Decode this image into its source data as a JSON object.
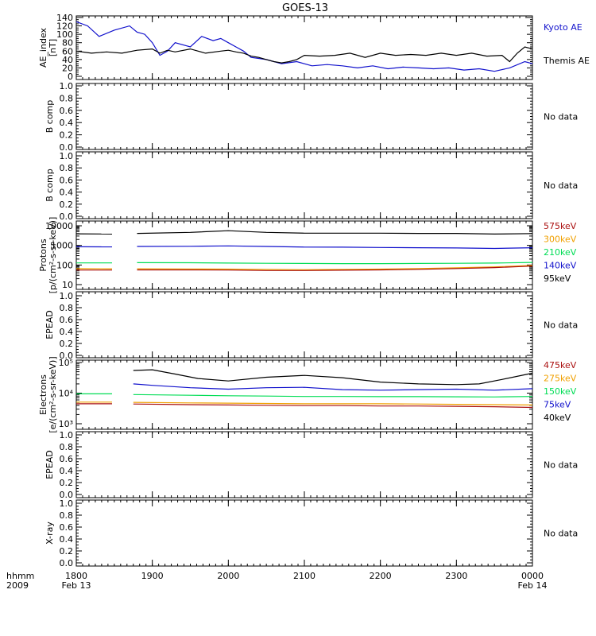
{
  "title": "GOES-13",
  "time_axis": {
    "ticks": [
      "1800",
      "1900",
      "2000",
      "2100",
      "2200",
      "2300",
      "0000"
    ],
    "corner_label": "hhmm",
    "corner_year": "2009",
    "start_date": "Feb 13",
    "end_date": "Feb 14"
  },
  "no_data_text": "No data",
  "colors": {
    "black": "#000000",
    "blue": "#1010cc",
    "green": "#00dd55",
    "orange": "#f0a000",
    "red": "#aa1010",
    "dark_blue": "#0000cc"
  },
  "chart_data": [
    {
      "type": "line",
      "ylabel": "AE_index [nT]",
      "ylim": [
        0,
        140
      ],
      "yticks": [
        0,
        20,
        40,
        60,
        80,
        100,
        120,
        140
      ],
      "xlim_hours": [
        18,
        24
      ],
      "legend": [
        "Kyoto AE",
        "Themis AE"
      ],
      "series": [
        {
          "name": "Kyoto AE",
          "color": "#1010cc",
          "x": [
            18.0,
            18.15,
            18.3,
            18.5,
            18.7,
            18.8,
            18.9,
            19.0,
            19.1,
            19.2,
            19.3,
            19.5,
            19.65,
            19.8,
            19.9,
            20.0,
            20.1,
            20.2,
            20.3,
            20.5,
            20.7,
            20.9,
            21.1,
            21.3,
            21.5,
            21.7,
            21.9,
            22.1,
            22.3,
            22.5,
            22.7,
            22.9,
            23.1,
            23.3,
            23.5,
            23.7,
            23.9,
            24.0
          ],
          "y": [
            130,
            120,
            95,
            110,
            120,
            105,
            100,
            80,
            50,
            60,
            80,
            70,
            95,
            85,
            90,
            80,
            70,
            60,
            45,
            40,
            30,
            35,
            25,
            28,
            25,
            20,
            25,
            18,
            22,
            20,
            18,
            20,
            15,
            18,
            12,
            20,
            35,
            30
          ]
        },
        {
          "name": "Themis AE",
          "color": "#000000",
          "x": [
            18.0,
            18.2,
            18.4,
            18.6,
            18.8,
            19.0,
            19.1,
            19.2,
            19.3,
            19.5,
            19.7,
            19.9,
            20.0,
            20.1,
            20.2,
            20.3,
            20.4,
            20.5,
            20.6,
            20.7,
            20.8,
            20.9,
            21.0,
            21.2,
            21.4,
            21.6,
            21.8,
            22.0,
            22.2,
            22.4,
            22.6,
            22.8,
            23.0,
            23.2,
            23.4,
            23.6,
            23.7,
            23.8,
            23.9,
            24.0
          ],
          "y": [
            60,
            55,
            58,
            55,
            62,
            65,
            55,
            62,
            58,
            65,
            55,
            60,
            62,
            58,
            55,
            48,
            45,
            40,
            35,
            32,
            35,
            40,
            50,
            48,
            50,
            55,
            45,
            55,
            50,
            52,
            50,
            55,
            50,
            55,
            48,
            50,
            35,
            55,
            70,
            65
          ]
        }
      ]
    },
    {
      "type": "line",
      "ylabel": "B comp",
      "ylim": [
        0.0,
        1.0
      ],
      "yticks": [
        "0.0",
        "0.2",
        "0.4",
        "0.6",
        "0.8",
        "1.0"
      ],
      "status": "No data",
      "series": []
    },
    {
      "type": "line",
      "ylabel": "B comp",
      "ylim": [
        0.0,
        1.0
      ],
      "yticks": [
        "0.0",
        "0.2",
        "0.4",
        "0.6",
        "0.8",
        "1.0"
      ],
      "status": "No data",
      "series": []
    },
    {
      "type": "line",
      "ylabel": "Protons [p/(cm²-s-sr-keV)]",
      "yscale": "log",
      "ylim": [
        10,
        10000
      ],
      "yticks": [
        "10",
        "100",
        "1000",
        "10000"
      ],
      "data_gap_hours": [
        18.47,
        18.8
      ],
      "legend": [
        "575keV",
        "300keV",
        "210keV",
        "140keV",
        "95keV"
      ],
      "series": [
        {
          "name": "95keV",
          "color": "#000000",
          "x": [
            18.0,
            18.47,
            18.8,
            19.5,
            20.0,
            20.5,
            21.0,
            21.5,
            22.0,
            22.5,
            23.0,
            23.5,
            24.0
          ],
          "y": [
            3900,
            3800,
            4100,
            4600,
            5600,
            4600,
            4200,
            4200,
            4200,
            4100,
            4100,
            3800,
            4000
          ]
        },
        {
          "name": "140keV",
          "color": "#1010cc",
          "x": [
            18.0,
            18.47,
            18.8,
            19.5,
            20.0,
            20.5,
            21.0,
            21.5,
            22.0,
            22.5,
            23.0,
            23.5,
            24.0
          ],
          "y": [
            850,
            840,
            880,
            900,
            940,
            880,
            820,
            810,
            780,
            760,
            740,
            700,
            760
          ]
        },
        {
          "name": "210keV",
          "color": "#00dd55",
          "x": [
            18.0,
            18.47,
            18.8,
            19.5,
            20.0,
            20.5,
            21.0,
            21.5,
            22.0,
            22.5,
            23.0,
            23.5,
            24.0
          ],
          "y": [
            128,
            128,
            132,
            130,
            125,
            122,
            120,
            118,
            118,
            120,
            122,
            125,
            135
          ]
        },
        {
          "name": "300keV",
          "color": "#f0a000",
          "x": [
            18.0,
            18.47,
            18.8,
            19.5,
            20.0,
            20.5,
            21.0,
            21.5,
            22.0,
            22.5,
            23.0,
            23.5,
            24.0
          ],
          "y": [
            65,
            64,
            64,
            63,
            62,
            60,
            58,
            60,
            62,
            66,
            72,
            80,
            95
          ]
        },
        {
          "name": "575keV",
          "color": "#aa1010",
          "x": [
            18.0,
            18.47,
            18.8,
            19.5,
            20.0,
            20.5,
            21.0,
            21.5,
            22.0,
            22.5,
            23.0,
            23.5,
            24.0
          ],
          "y": [
            55,
            55,
            56,
            56,
            55,
            52,
            52,
            54,
            56,
            60,
            66,
            74,
            88
          ]
        }
      ]
    },
    {
      "type": "line",
      "ylabel": "EPEAD",
      "ylim": [
        0.0,
        1.0
      ],
      "yticks": [
        "0.0",
        "0.2",
        "0.4",
        "0.6",
        "0.8",
        "1.0"
      ],
      "status": "No data",
      "series": []
    },
    {
      "type": "line",
      "ylabel": "Electrons [e/(cm²-s-sr-keV)]",
      "yscale": "log",
      "ylim": [
        1000,
        100000
      ],
      "yticks": [
        "10³",
        "10⁴",
        "10⁵"
      ],
      "data_gap_hours": [
        18.47,
        18.75
      ],
      "legend": [
        "475keV",
        "275keV",
        "150keV",
        "75keV",
        "40keV"
      ],
      "series": [
        {
          "name": "40keV",
          "color": "#000000",
          "x": [
            18.75,
            19.0,
            19.3,
            19.6,
            20.0,
            20.5,
            21.0,
            21.5,
            22.0,
            22.5,
            23.0,
            23.3,
            23.6,
            24.0
          ],
          "y": [
            55000,
            58000,
            42000,
            30000,
            25000,
            33000,
            38000,
            32000,
            23000,
            20000,
            19000,
            20000,
            28000,
            45000
          ]
        },
        {
          "name": "75keV",
          "color": "#1010cc",
          "x": [
            18.75,
            19.0,
            19.5,
            20.0,
            20.5,
            21.0,
            21.5,
            22.0,
            22.5,
            23.0,
            23.5,
            24.0
          ],
          "y": [
            20000,
            18000,
            15000,
            13500,
            15000,
            15500,
            13000,
            12500,
            13000,
            13500,
            12500,
            14000
          ]
        },
        {
          "name": "150keV",
          "color": "#00dd55",
          "x": [
            18.0,
            18.47,
            18.75,
            19.5,
            20.0,
            20.5,
            21.0,
            21.5,
            22.0,
            22.5,
            23.0,
            23.5,
            24.0
          ],
          "y": [
            9500,
            9500,
            9000,
            8500,
            8200,
            8000,
            7800,
            7800,
            7700,
            7700,
            7600,
            7500,
            7800
          ]
        },
        {
          "name": "275keV",
          "color": "#f0a000",
          "x": [
            18.0,
            18.47,
            18.75,
            19.5,
            20.0,
            20.5,
            21.0,
            21.5,
            22.0,
            22.5,
            23.0,
            23.5,
            24.0
          ],
          "y": [
            5100,
            5100,
            5000,
            4800,
            4700,
            4600,
            4500,
            4500,
            4500,
            4400,
            4300,
            4200,
            4100
          ]
        },
        {
          "name": "475keV",
          "color": "#aa1010",
          "x": [
            18.0,
            18.47,
            18.75,
            19.5,
            20.0,
            20.5,
            21.0,
            21.5,
            22.0,
            22.5,
            23.0,
            23.5,
            24.0
          ],
          "y": [
            4500,
            4500,
            4400,
            4200,
            4100,
            4000,
            3900,
            3900,
            3800,
            3800,
            3700,
            3600,
            3400
          ]
        }
      ]
    },
    {
      "type": "line",
      "ylabel": "EPEAD",
      "ylim": [
        0.0,
        1.0
      ],
      "yticks": [
        "0.0",
        "0.2",
        "0.4",
        "0.6",
        "0.8",
        "1.0"
      ],
      "status": "No data",
      "series": []
    },
    {
      "type": "line",
      "ylabel": "X-ray",
      "ylim": [
        0.0,
        1.0
      ],
      "yticks": [
        "0.0",
        "0.2",
        "0.4",
        "0.6",
        "0.8",
        "1.0"
      ],
      "status": "No data",
      "series": []
    }
  ]
}
